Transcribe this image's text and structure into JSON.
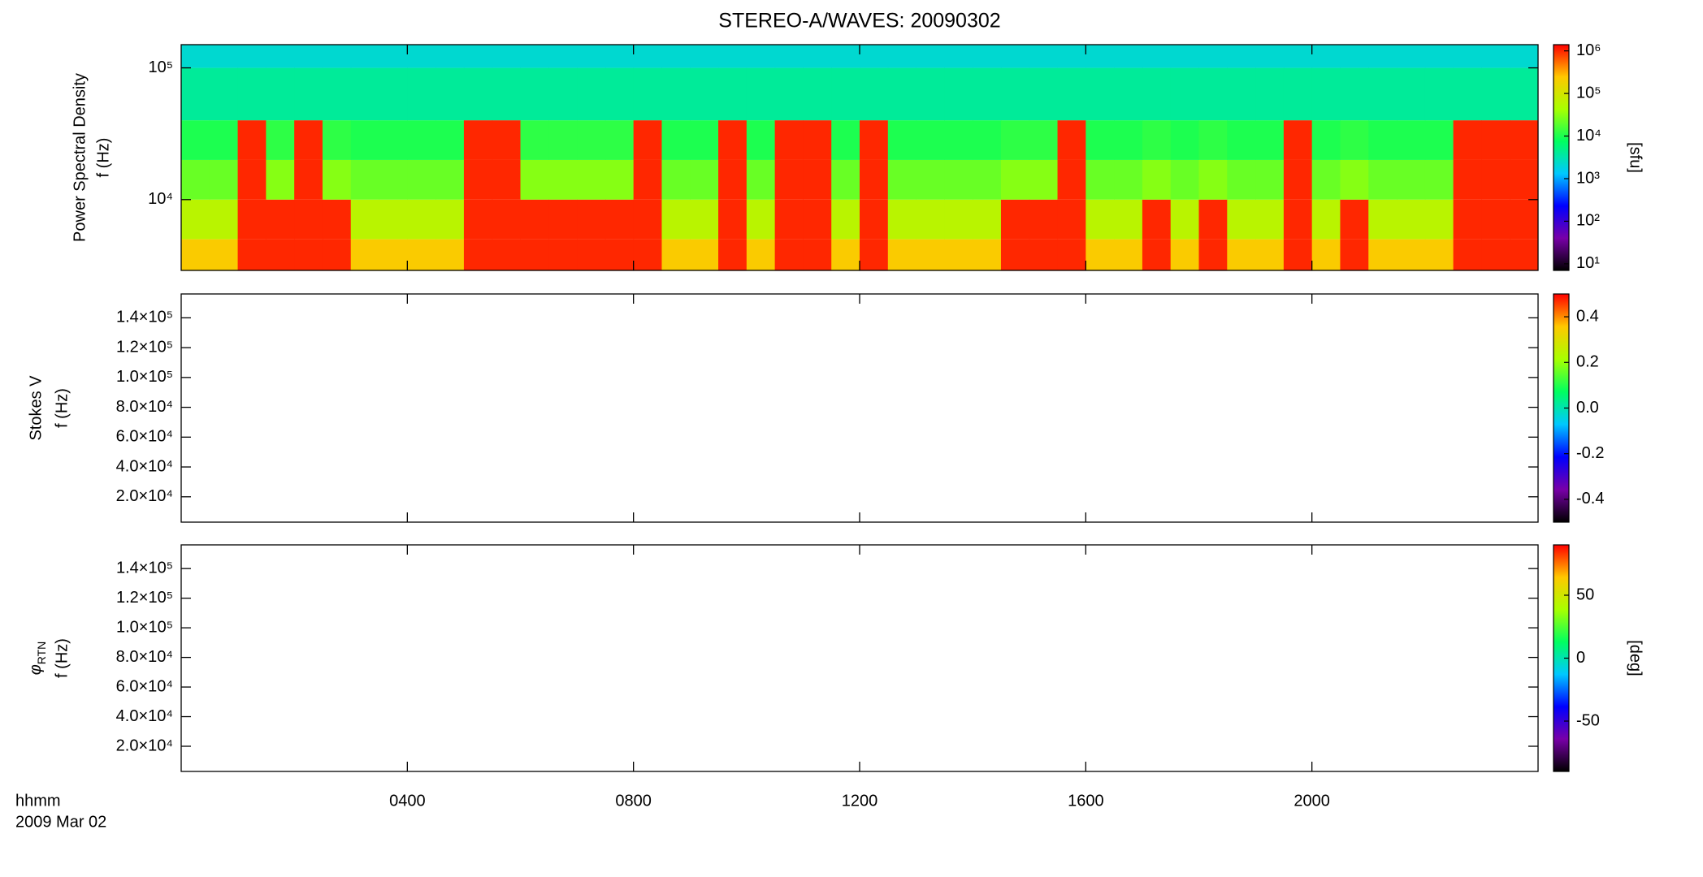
{
  "title": "STEREO-A/WAVES: 20090302",
  "colormap": [
    "#000000",
    "#7800a8",
    "#0000ff",
    "#00c8ff",
    "#00ff60",
    "#a8ff00",
    "#ffc800",
    "#ff0000"
  ],
  "chart_data": [
    {
      "type": "spectrogram",
      "y_label": [
        "Power Spectral Density",
        "f (Hz)"
      ],
      "yscale": "log",
      "ylim": [
        2900,
        150000
      ],
      "yticks": [
        {
          "value": 10000,
          "label": "10⁴"
        },
        {
          "value": 100000,
          "label": "10⁵"
        }
      ],
      "xlim": [
        0,
        24
      ],
      "x_edges": [
        0,
        0.5,
        1,
        1.5,
        2,
        2.5,
        3,
        3.5,
        4,
        4.5,
        5,
        5.5,
        6,
        6.5,
        7,
        7.5,
        8,
        8.5,
        9,
        9.5,
        10,
        10.5,
        11,
        11.5,
        12,
        12.5,
        13,
        13.5,
        14,
        14.5,
        15,
        15.5,
        16,
        16.5,
        17,
        17.5,
        18,
        18.5,
        19,
        19.5,
        20,
        20.5,
        21,
        21.5,
        22,
        22.5,
        23,
        23.5,
        24
      ],
      "y_edges": [
        2900,
        5000,
        10000,
        20000,
        40000,
        100000,
        150000
      ],
      "values": [
        [
          220000,
          60000,
          22000,
          10000,
          4000,
          2200
        ],
        [
          220000,
          60000,
          22000,
          10000,
          4000,
          2200
        ],
        [
          1000000,
          1000000,
          1000000,
          1000000,
          4000,
          2200
        ],
        [
          1000000,
          1000000,
          30000,
          12000,
          4000,
          2200
        ],
        [
          1000000,
          1000000,
          1000000,
          1000000,
          4000,
          2200
        ],
        [
          1000000,
          1000000,
          30000,
          12000,
          4000,
          2200
        ],
        [
          220000,
          60000,
          22000,
          10000,
          4000,
          2200
        ],
        [
          220000,
          60000,
          22000,
          10000,
          4000,
          2200
        ],
        [
          220000,
          60000,
          22000,
          10000,
          4000,
          2200
        ],
        [
          220000,
          60000,
          22000,
          10000,
          4000,
          2200
        ],
        [
          1000000,
          1000000,
          1000000,
          1000000,
          4000,
          2200
        ],
        [
          1000000,
          1000000,
          1000000,
          1000000,
          4000,
          2200
        ],
        [
          1000000,
          1000000,
          30000,
          12000,
          4000,
          2200
        ],
        [
          1000000,
          1000000,
          30000,
          12000,
          4000,
          2200
        ],
        [
          1000000,
          1000000,
          30000,
          12000,
          4000,
          2200
        ],
        [
          1000000,
          1000000,
          30000,
          12000,
          4000,
          2200
        ],
        [
          1000000,
          1000000,
          1000000,
          1000000,
          4000,
          2200
        ],
        [
          220000,
          60000,
          22000,
          10000,
          4000,
          2200
        ],
        [
          220000,
          60000,
          22000,
          10000,
          4000,
          2200
        ],
        [
          1000000,
          1000000,
          1000000,
          1000000,
          4000,
          2200
        ],
        [
          220000,
          60000,
          22000,
          10000,
          4000,
          2200
        ],
        [
          1000000,
          1000000,
          1000000,
          1000000,
          4000,
          2200
        ],
        [
          1000000,
          1000000,
          1000000,
          1000000,
          4000,
          2200
        ],
        [
          220000,
          60000,
          22000,
          10000,
          4000,
          2200
        ],
        [
          1000000,
          1000000,
          1000000,
          1000000,
          4000,
          2200
        ],
        [
          220000,
          60000,
          22000,
          10000,
          4000,
          2200
        ],
        [
          220000,
          60000,
          22000,
          10000,
          4000,
          2200
        ],
        [
          220000,
          60000,
          22000,
          10000,
          4000,
          2200
        ],
        [
          220000,
          60000,
          22000,
          10000,
          4000,
          2200
        ],
        [
          1000000,
          1000000,
          30000,
          12000,
          4000,
          2200
        ],
        [
          1000000,
          1000000,
          30000,
          12000,
          4000,
          2200
        ],
        [
          1000000,
          1000000,
          1000000,
          1000000,
          4000,
          2200
        ],
        [
          220000,
          60000,
          22000,
          10000,
          4000,
          2200
        ],
        [
          220000,
          60000,
          22000,
          10000,
          4000,
          2200
        ],
        [
          1000000,
          1000000,
          30000,
          12000,
          4000,
          2200
        ],
        [
          220000,
          60000,
          22000,
          10000,
          4000,
          2200
        ],
        [
          1000000,
          1000000,
          30000,
          12000,
          4000,
          2200
        ],
        [
          220000,
          60000,
          22000,
          10000,
          4000,
          2200
        ],
        [
          220000,
          60000,
          22000,
          10000,
          4000,
          2200
        ],
        [
          1000000,
          1000000,
          1000000,
          1000000,
          4000,
          2200
        ],
        [
          220000,
          60000,
          22000,
          10000,
          4000,
          2200
        ],
        [
          1000000,
          1000000,
          30000,
          12000,
          4000,
          2200
        ],
        [
          220000,
          60000,
          22000,
          10000,
          4000,
          2200
        ],
        [
          220000,
          60000,
          22000,
          10000,
          4000,
          2200
        ],
        [
          220000,
          60000,
          22000,
          10000,
          4000,
          2200
        ],
        [
          1000000,
          1000000,
          1000000,
          1000000,
          4000,
          2200
        ],
        [
          1000000,
          1000000,
          1000000,
          1000000,
          4000,
          2200
        ],
        [
          1000000,
          1000000,
          1000000,
          1000000,
          4000,
          2200
        ]
      ],
      "colorbar": {
        "label": "[sfu]",
        "scale": "log",
        "lim": [
          7,
          1400000
        ],
        "ticks": [
          {
            "value": 10,
            "label": "10¹"
          },
          {
            "value": 100,
            "label": "10²"
          },
          {
            "value": 1000,
            "label": "10³"
          },
          {
            "value": 10000,
            "label": "10⁴"
          },
          {
            "value": 100000,
            "label": "10⁵"
          },
          {
            "value": 1000000,
            "label": "10⁶"
          }
        ]
      }
    },
    {
      "type": "spectrogram",
      "y_label": [
        "Stokes V",
        "f (Hz)"
      ],
      "ylim": [
        3000,
        156000
      ],
      "yticks": [
        {
          "value": 20000,
          "label": "2.0×10⁴"
        },
        {
          "value": 40000,
          "label": "4.0×10⁴"
        },
        {
          "value": 60000,
          "label": "6.0×10⁴"
        },
        {
          "value": 80000,
          "label": "8.0×10⁴"
        },
        {
          "value": 100000,
          "label": "1.0×10⁵"
        },
        {
          "value": 120000,
          "label": "1.2×10⁵"
        },
        {
          "value": 140000,
          "label": "1.4×10⁵"
        }
      ],
      "xlim": [
        0,
        24
      ],
      "colorbar": {
        "lim": [
          -0.5,
          0.5
        ],
        "ticks": [
          -0.4,
          -0.2,
          {
            "value": 0,
            "label": "0.0"
          },
          0.2,
          0.4
        ]
      }
    },
    {
      "type": "spectrogram",
      "y_label": [
        "φ",
        "f (Hz)"
      ],
      "y_label_subscript": "RTN",
      "ylim": [
        3000,
        156000
      ],
      "yticks": [
        {
          "value": 20000,
          "label": "2.0×10⁴"
        },
        {
          "value": 40000,
          "label": "4.0×10⁴"
        },
        {
          "value": 60000,
          "label": "6.0×10⁴"
        },
        {
          "value": 80000,
          "label": "8.0×10⁴"
        },
        {
          "value": 100000,
          "label": "1.0×10⁵"
        },
        {
          "value": 120000,
          "label": "1.2×10⁵"
        },
        {
          "value": 140000,
          "label": "1.4×10⁵"
        }
      ],
      "xlim": [
        0,
        24
      ],
      "xticks": [
        {
          "value": 4,
          "label": "0400"
        },
        {
          "value": 8,
          "label": "0800"
        },
        {
          "value": 12,
          "label": "1200"
        },
        {
          "value": 16,
          "label": "1600"
        },
        {
          "value": 20,
          "label": "2000"
        }
      ],
      "x_label": "hhmm",
      "x_sublabel": "2009 Mar 02",
      "colorbar": {
        "label": "[deg]",
        "lim": [
          -90,
          90
        ],
        "ticks": [
          -50,
          0,
          50
        ]
      }
    }
  ]
}
